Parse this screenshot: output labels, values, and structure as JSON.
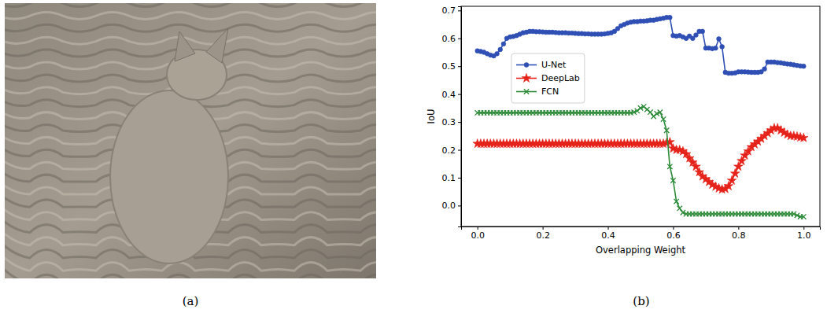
{
  "panel_labels": [
    "(a)",
    "(b)"
  ],
  "chart_data": {
    "type": "line",
    "x_label": "Overlapping Weight",
    "y_label": "IoU",
    "xlim": [
      -0.05,
      1.05
    ],
    "ylim": [
      -0.075,
      0.715
    ],
    "xticks": [
      {
        "value": 0,
        "label": "0.0"
      },
      0.2,
      0.4,
      0.6,
      0.8,
      {
        "value": 1,
        "label": "1.0"
      }
    ],
    "yticks": [
      {
        "value": 0,
        "label": "0.0"
      },
      0.1,
      0.2,
      0.3,
      0.4,
      0.5,
      0.6,
      0.7
    ],
    "grid": false,
    "legend": "left",
    "x": [
      0,
      0.01,
      0.02,
      0.03,
      0.04,
      0.05,
      0.06,
      0.07,
      0.08,
      0.09,
      0.1,
      0.11,
      0.12,
      0.13,
      0.14,
      0.15,
      0.16,
      0.17,
      0.18,
      0.19,
      0.2,
      0.21,
      0.22,
      0.23,
      0.24,
      0.25,
      0.26,
      0.27,
      0.28,
      0.29,
      0.3,
      0.31,
      0.32,
      0.33,
      0.34,
      0.35,
      0.36,
      0.37,
      0.38,
      0.39,
      0.4,
      0.41,
      0.42,
      0.43,
      0.44,
      0.45,
      0.46,
      0.47,
      0.48,
      0.49,
      0.5,
      0.51,
      0.52,
      0.53,
      0.54,
      0.55,
      0.56,
      0.57,
      0.58,
      0.59,
      0.6,
      0.61,
      0.62,
      0.63,
      0.64,
      0.65,
      0.66,
      0.67,
      0.68,
      0.69,
      0.7,
      0.71,
      0.72,
      0.73,
      0.74,
      0.75,
      0.76,
      0.77,
      0.78,
      0.79,
      0.8,
      0.81,
      0.82,
      0.83,
      0.84,
      0.85,
      0.86,
      0.87,
      0.88,
      0.89,
      0.9,
      0.91,
      0.92,
      0.93,
      0.94,
      0.95,
      0.96,
      0.97,
      0.98,
      0.99,
      1
    ],
    "series": [
      {
        "name": "U-Net",
        "color": "#2f4fb5",
        "marker": "circle",
        "line_style": "solid",
        "values": [
          0.555,
          0.553,
          0.55,
          0.545,
          0.54,
          0.537,
          0.545,
          0.56,
          0.58,
          0.6,
          0.605,
          0.607,
          0.61,
          0.615,
          0.62,
          0.622,
          0.625,
          0.625,
          0.624,
          0.624,
          0.623,
          0.622,
          0.622,
          0.622,
          0.621,
          0.62,
          0.62,
          0.62,
          0.619,
          0.619,
          0.618,
          0.617,
          0.617,
          0.616,
          0.616,
          0.615,
          0.615,
          0.615,
          0.615,
          0.616,
          0.618,
          0.62,
          0.625,
          0.635,
          0.645,
          0.65,
          0.655,
          0.658,
          0.66,
          0.66,
          0.662,
          0.662,
          0.663,
          0.665,
          0.665,
          0.668,
          0.67,
          0.672,
          0.675,
          0.675,
          0.61,
          0.608,
          0.61,
          0.605,
          0.6,
          0.608,
          0.6,
          0.612,
          0.625,
          0.625,
          0.565,
          0.565,
          0.563,
          0.565,
          0.598,
          0.57,
          0.478,
          0.475,
          0.475,
          0.476,
          0.48,
          0.48,
          0.48,
          0.479,
          0.478,
          0.478,
          0.478,
          0.48,
          0.49,
          0.515,
          0.515,
          0.515,
          0.513,
          0.512,
          0.51,
          0.508,
          0.507,
          0.505,
          0.503,
          0.501,
          0.5
        ]
      },
      {
        "name": "DeepLab",
        "color": "#e5231b",
        "marker": "star",
        "line_style": "solid",
        "values": [
          0.222,
          0.222,
          0.222,
          0.222,
          0.222,
          0.222,
          0.222,
          0.222,
          0.222,
          0.222,
          0.222,
          0.222,
          0.222,
          0.222,
          0.222,
          0.222,
          0.222,
          0.222,
          0.222,
          0.222,
          0.222,
          0.222,
          0.222,
          0.222,
          0.222,
          0.222,
          0.222,
          0.222,
          0.222,
          0.222,
          0.222,
          0.222,
          0.222,
          0.222,
          0.222,
          0.222,
          0.222,
          0.222,
          0.222,
          0.222,
          0.222,
          0.222,
          0.222,
          0.222,
          0.222,
          0.222,
          0.222,
          0.222,
          0.222,
          0.222,
          0.222,
          0.222,
          0.222,
          0.222,
          0.222,
          0.222,
          0.222,
          0.222,
          0.225,
          0.228,
          0.205,
          0.2,
          0.2,
          0.195,
          0.185,
          0.17,
          0.155,
          0.14,
          0.12,
          0.105,
          0.095,
          0.085,
          0.075,
          0.068,
          0.062,
          0.058,
          0.06,
          0.07,
          0.09,
          0.115,
          0.14,
          0.16,
          0.18,
          0.195,
          0.21,
          0.22,
          0.23,
          0.24,
          0.25,
          0.26,
          0.27,
          0.278,
          0.278,
          0.27,
          0.262,
          0.255,
          0.25,
          0.25,
          0.248,
          0.245,
          0.243
        ]
      },
      {
        "name": "FCN",
        "color": "#2e8b3a",
        "marker": "x",
        "line_style": "solid",
        "values": [
          0.333,
          0.333,
          0.333,
          0.333,
          0.333,
          0.333,
          0.333,
          0.333,
          0.333,
          0.333,
          0.333,
          0.333,
          0.333,
          0.333,
          0.333,
          0.333,
          0.333,
          0.333,
          0.333,
          0.333,
          0.333,
          0.333,
          0.333,
          0.333,
          0.333,
          0.333,
          0.333,
          0.333,
          0.333,
          0.333,
          0.333,
          0.333,
          0.333,
          0.333,
          0.333,
          0.333,
          0.333,
          0.333,
          0.333,
          0.333,
          0.333,
          0.333,
          0.333,
          0.333,
          0.333,
          0.333,
          0.333,
          0.333,
          0.335,
          0.34,
          0.35,
          0.355,
          0.345,
          0.335,
          0.32,
          0.33,
          0.335,
          0.31,
          0.27,
          0.14,
          0.09,
          0.015,
          -0.01,
          -0.025,
          -0.03,
          -0.03,
          -0.03,
          -0.03,
          -0.03,
          -0.03,
          -0.03,
          -0.03,
          -0.03,
          -0.03,
          -0.03,
          -0.03,
          -0.03,
          -0.03,
          -0.03,
          -0.03,
          -0.03,
          -0.03,
          -0.03,
          -0.03,
          -0.03,
          -0.03,
          -0.03,
          -0.03,
          -0.03,
          -0.03,
          -0.03,
          -0.03,
          -0.03,
          -0.03,
          -0.03,
          -0.03,
          -0.03,
          -0.03,
          -0.035,
          -0.04,
          -0.04
        ]
      }
    ]
  }
}
